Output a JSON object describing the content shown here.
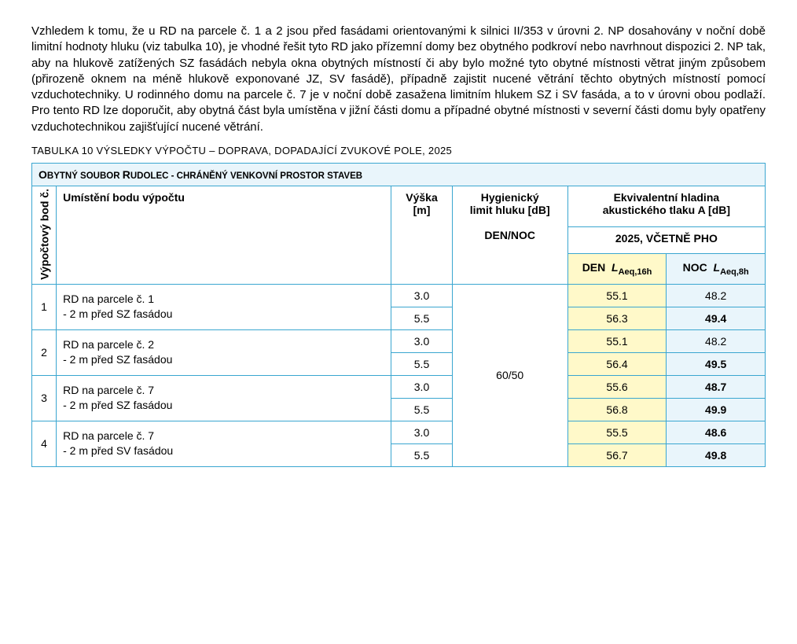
{
  "paragraph": "Vzhledem k tomu, že u RD na parcele č. 1 a 2 jsou před fasádami orientovanými k silnici II/353 v úrovni 2. NP dosahovány v noční době limitní hodnoty hluku (viz tabulka 10), je vhodné řešit tyto RD jako přízemní domy bez obytného podkroví nebo navrhnout dispozici 2. NP tak, aby na hlukově zatížených SZ fasádách nebyla okna obytných místností či aby bylo možné tyto obytné místnosti větrat jiným způsobem (přirozeně oknem na méně hlukově exponované JZ, SV fasádě), případně zajistit nucené větrání těchto obytných místností pomocí vzduchotechniky. U rodinného domu na parcele č. 7 je v noční době zasažena limitním hlukem SZ i SV fasáda, a to v úrovni obou podlaží. Pro tento RD lze doporučit, aby obytná část byla umístěna v jižní části domu a případné obytné místnosti v severní části domu byly opatřeny vzduchotechnikou zajišťující nucené větrání.",
  "caption": "TABULKA 10 VÝSLEDKY VÝPOČTU – DOPRAVA, DOPADAJÍCÍ ZVUKOVÉ POLE, 2025",
  "headers": {
    "title_prefix": "O",
    "title_1": "bytný soubor ",
    "title_2": "R",
    "title_3": "udolec",
    "title_4": " - chráněný venkovní prostor staveb",
    "vyp_bod": "Výpočtový bod č.",
    "umisteni": "Umístění bodu výpočtu",
    "vyska_line1": "Výška",
    "vyska_line2": "[m]",
    "hyg_line1": "Hygienický",
    "hyg_line2": "limit hluku [dB]",
    "hyg_line3": "DEN/NOC",
    "ekv_line1": "Ekvivalentní hladina",
    "ekv_line2": "akustického tlaku A [dB]",
    "year": "2025, VČETNĚ PHO",
    "den_label": "DEN",
    "den_sub": "Aeq,16h",
    "noc_label": "NOC",
    "noc_sub": "Aeq,8h",
    "limit_value": "60/50"
  },
  "rows": [
    {
      "num": "1",
      "desc_line1": "RD na parcele č. 1",
      "desc_line2": "- 2 m před SZ fasádou",
      "heights": [
        {
          "h": "3.0",
          "den": "55.1",
          "noc": "48.2",
          "den_bold": false,
          "noc_bold": false
        },
        {
          "h": "5.5",
          "den": "56.3",
          "noc": "49.4",
          "den_bold": false,
          "noc_bold": true
        }
      ]
    },
    {
      "num": "2",
      "desc_line1": "RD na parcele č. 2",
      "desc_line2": "- 2 m před SZ fasádou",
      "heights": [
        {
          "h": "3.0",
          "den": "55.1",
          "noc": "48.2",
          "den_bold": false,
          "noc_bold": false
        },
        {
          "h": "5.5",
          "den": "56.4",
          "noc": "49.5",
          "den_bold": false,
          "noc_bold": true
        }
      ]
    },
    {
      "num": "3",
      "desc_line1": "RD na parcele č. 7",
      "desc_line2": "- 2 m před SZ fasádou",
      "heights": [
        {
          "h": "3.0",
          "den": "55.6",
          "noc": "48.7",
          "den_bold": false,
          "noc_bold": true
        },
        {
          "h": "5.5",
          "den": "56.8",
          "noc": "49.9",
          "den_bold": false,
          "noc_bold": true
        }
      ]
    },
    {
      "num": "4",
      "desc_line1": "RD na parcele č. 7",
      "desc_line2": "- 2 m před SV fasádou",
      "heights": [
        {
          "h": "3.0",
          "den": "55.5",
          "noc": "48.6",
          "den_bold": false,
          "noc_bold": true
        },
        {
          "h": "5.5",
          "den": "56.7",
          "noc": "49.8",
          "den_bold": false,
          "noc_bold": true
        }
      ]
    }
  ],
  "colors": {
    "border": "#3aa6d0",
    "den_bg": "#fff9c9",
    "noc_bg": "#e9f5fb",
    "title_bg": "#e9f5fb"
  }
}
